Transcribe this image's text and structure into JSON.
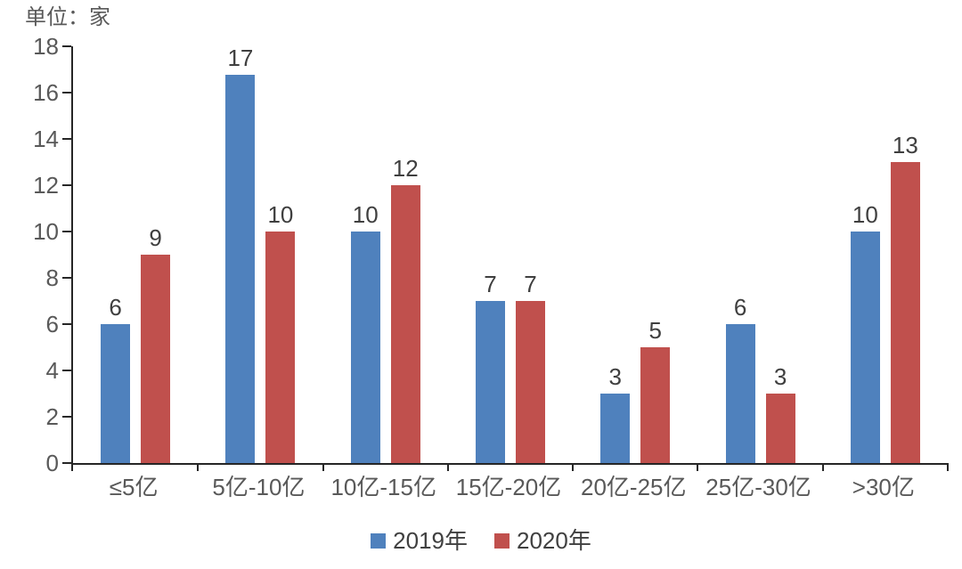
{
  "unit_label": "单位：家",
  "colors": {
    "series_2019": "#4F81BD",
    "series_2020": "#C0504D",
    "axis": "#262626",
    "tick_label": "#595959",
    "data_label": "#3f3f3f"
  },
  "chart_data": {
    "type": "bar",
    "title": "",
    "unit": "单位：家",
    "categories": [
      "≤5亿",
      "5亿-10亿",
      "10亿-15亿",
      "15亿-20亿",
      "20亿-25亿",
      "25亿-30亿",
      ">30亿"
    ],
    "series": [
      {
        "name": "2019年",
        "color": "#4F81BD",
        "values": [
          6,
          17,
          10,
          7,
          3,
          6,
          10
        ]
      },
      {
        "name": "2020年",
        "color": "#C0504D",
        "values": [
          9,
          10,
          12,
          7,
          5,
          3,
          13
        ]
      }
    ],
    "xlabel": "",
    "ylabel": "",
    "ylim": [
      0,
      18
    ],
    "yticks": [
      0,
      2,
      4,
      6,
      8,
      10,
      12,
      14,
      16,
      18
    ],
    "grid": false,
    "data_labels": true,
    "legend_position": "bottom"
  }
}
